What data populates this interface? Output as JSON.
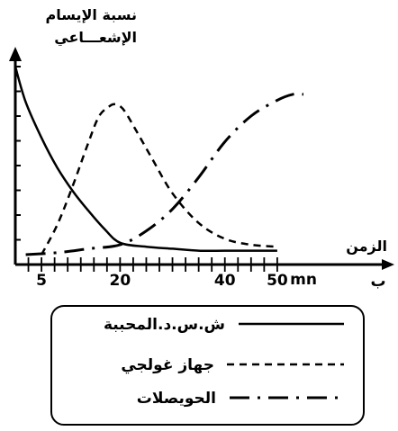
{
  "chart_data": {
    "type": "line",
    "ylabel_lines": [
      "نسبة الإيسام",
      "الإشعـــاعي"
    ],
    "xlabel": "الزمن",
    "xunit": "mn",
    "xunit_prefix": "ب",
    "xticks": [
      5,
      20,
      40,
      50
    ],
    "xlim": [
      0,
      55
    ],
    "ylim": [
      0,
      100
    ],
    "series": [
      {
        "name": "ش.س.د.المحببة",
        "style": "solid",
        "x": [
          0,
          2,
          5,
          8,
          11,
          14,
          17,
          20,
          25,
          30,
          35,
          40,
          45,
          50
        ],
        "y": [
          100,
          82,
          64,
          49,
          37,
          27,
          18,
          11,
          9,
          8,
          7,
          7,
          7,
          7
        ]
      },
      {
        "name": "جهاز غولجي",
        "style": "dashed",
        "x": [
          5,
          8,
          11,
          14,
          16,
          18,
          19,
          20,
          21,
          23,
          26,
          30,
          35,
          40,
          45,
          50
        ],
        "y": [
          5,
          20,
          40,
          62,
          75,
          80,
          81,
          80,
          77,
          68,
          54,
          36,
          21,
          13,
          10,
          9
        ]
      },
      {
        "name": "الحويصلات",
        "style": "dashdot",
        "x": [
          2,
          8,
          14,
          20,
          25,
          30,
          35,
          40,
          45,
          50,
          53,
          55
        ],
        "y": [
          5,
          6,
          8,
          10,
          17,
          28,
          44,
          62,
          75,
          83,
          86,
          86
        ]
      }
    ]
  }
}
